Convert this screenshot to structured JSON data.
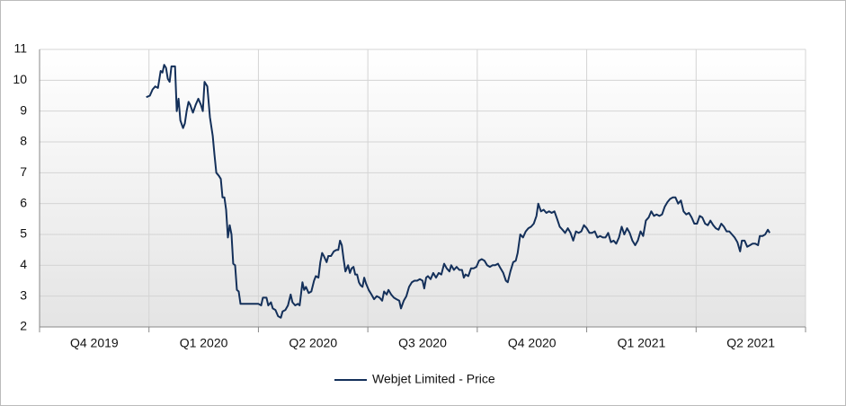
{
  "chart_data": {
    "type": "line",
    "xlim": [
      0,
      7
    ],
    "xticks": [
      {
        "value": 0.5,
        "label": "Q4 2019"
      },
      {
        "value": 1.5,
        "label": "Q1 2020"
      },
      {
        "value": 2.5,
        "label": "Q2 2020"
      },
      {
        "value": 3.5,
        "label": "Q3 2020"
      },
      {
        "value": 4.5,
        "label": "Q4 2020"
      },
      {
        "value": 5.5,
        "label": "Q1 2021"
      },
      {
        "value": 6.5,
        "label": "Q2 2021"
      }
    ],
    "ylim": [
      2,
      11
    ],
    "yticks": [
      2,
      3,
      4,
      5,
      6,
      7,
      8,
      9,
      10,
      11
    ],
    "grid": true,
    "legend": "bottom",
    "x": [
      0.975,
      1.008,
      1.033,
      1.057,
      1.082,
      1.107,
      1.123,
      1.139,
      1.156,
      1.172,
      1.189,
      1.205,
      1.238,
      1.254,
      1.27,
      1.287,
      1.311,
      1.328,
      1.344,
      1.361,
      1.377,
      1.402,
      1.426,
      1.451,
      1.475,
      1.492,
      1.508,
      1.533,
      1.557,
      1.582,
      1.598,
      1.615,
      1.639,
      1.656,
      1.672,
      1.689,
      1.705,
      1.721,
      1.738,
      1.754,
      1.77,
      1.787,
      1.803,
      1.82,
      1.836,
      1.869,
      1.934,
      2.0,
      2.025,
      2.041,
      2.074,
      2.09,
      2.115,
      2.131,
      2.156,
      2.18,
      2.205,
      2.221,
      2.246,
      2.27,
      2.295,
      2.311,
      2.336,
      2.361,
      2.377,
      2.402,
      2.418,
      2.434,
      2.459,
      2.484,
      2.508,
      2.525,
      2.549,
      2.566,
      2.582,
      2.598,
      2.623,
      2.639,
      2.664,
      2.689,
      2.713,
      2.73,
      2.746,
      2.762,
      2.779,
      2.795,
      2.82,
      2.836,
      2.852,
      2.869,
      2.885,
      2.902,
      2.918,
      2.934,
      2.951,
      2.967,
      2.984,
      3.008,
      3.033,
      3.057,
      3.082,
      3.107,
      3.131,
      3.148,
      3.172,
      3.189,
      3.213,
      3.238,
      3.262,
      3.287,
      3.303,
      3.328,
      3.352,
      3.377,
      3.402,
      3.426,
      3.451,
      3.475,
      3.5,
      3.516,
      3.533,
      3.549,
      3.574,
      3.598,
      3.623,
      3.648,
      3.672,
      3.697,
      3.721,
      3.746,
      3.762,
      3.787,
      3.811,
      3.836,
      3.861,
      3.877,
      3.893,
      3.918,
      3.943,
      3.967,
      3.992,
      4.016,
      4.041,
      4.066,
      4.09,
      4.115,
      4.139,
      4.164,
      4.189,
      4.213,
      4.238,
      4.262,
      4.279,
      4.303,
      4.328,
      4.352,
      4.369,
      4.393,
      4.418,
      4.443,
      4.467,
      4.492,
      4.516,
      4.541,
      4.557,
      4.582,
      4.607,
      4.631,
      4.656,
      4.68,
      4.705,
      4.73,
      4.754,
      4.779,
      4.803,
      4.828,
      4.852,
      4.877,
      4.902,
      4.926,
      4.951,
      4.975,
      5.0,
      5.025,
      5.049,
      5.074,
      5.098,
      5.123,
      5.148,
      5.172,
      5.197,
      5.221,
      5.246,
      5.27,
      5.295,
      5.32,
      5.344,
      5.369,
      5.393,
      5.418,
      5.443,
      5.467,
      5.492,
      5.516,
      5.541,
      5.566,
      5.59,
      5.615,
      5.639,
      5.664,
      5.689,
      5.713,
      5.738,
      5.762,
      5.787,
      5.811,
      5.836,
      5.861,
      5.885,
      5.91,
      5.934,
      5.959,
      5.984,
      6.008,
      6.033,
      6.057,
      6.082,
      6.107,
      6.131,
      6.156,
      6.18,
      6.205,
      6.23,
      6.254,
      6.279,
      6.303,
      6.328,
      6.352,
      6.377,
      6.402,
      6.418,
      6.443,
      6.467,
      6.492,
      6.516,
      6.541,
      6.566,
      6.582,
      6.607,
      6.631,
      6.656,
      6.672
    ],
    "series": [
      {
        "name": "Webjet Limited - Price",
        "color": "#14305a",
        "values": [
          9.45,
          9.5,
          9.7,
          9.8,
          9.75,
          10.3,
          10.25,
          10.5,
          10.4,
          10.05,
          9.95,
          10.45,
          10.45,
          9.0,
          9.4,
          8.7,
          8.45,
          8.6,
          9.0,
          9.3,
          9.2,
          8.95,
          9.2,
          9.4,
          9.2,
          9.0,
          9.95,
          9.8,
          8.8,
          8.2,
          7.6,
          7.0,
          6.9,
          6.8,
          6.2,
          6.2,
          5.8,
          4.9,
          5.3,
          5.0,
          4.05,
          4.0,
          3.2,
          3.15,
          2.75,
          2.75,
          2.75,
          2.75,
          2.7,
          2.95,
          2.95,
          2.7,
          2.8,
          2.6,
          2.55,
          2.35,
          2.3,
          2.5,
          2.55,
          2.7,
          3.05,
          2.8,
          2.7,
          2.75,
          2.7,
          3.45,
          3.2,
          3.3,
          3.1,
          3.15,
          3.5,
          3.65,
          3.6,
          4.1,
          4.4,
          4.3,
          4.1,
          4.3,
          4.3,
          4.45,
          4.5,
          4.5,
          4.8,
          4.65,
          4.2,
          3.8,
          4.0,
          3.75,
          3.9,
          3.95,
          3.7,
          3.7,
          3.45,
          3.35,
          3.3,
          3.6,
          3.4,
          3.2,
          3.05,
          2.9,
          3.0,
          2.95,
          2.85,
          3.15,
          3.05,
          3.2,
          3.05,
          2.95,
          2.9,
          2.85,
          2.6,
          2.85,
          3.0,
          3.3,
          3.45,
          3.5,
          3.5,
          3.55,
          3.5,
          3.25,
          3.6,
          3.65,
          3.55,
          3.75,
          3.6,
          3.75,
          3.7,
          4.05,
          3.9,
          3.8,
          4.0,
          3.85,
          3.95,
          3.85,
          3.85,
          3.6,
          3.7,
          3.65,
          3.9,
          3.9,
          3.95,
          4.15,
          4.2,
          4.15,
          4.0,
          3.95,
          4.0,
          4.0,
          4.05,
          3.9,
          3.75,
          3.5,
          3.45,
          3.8,
          4.1,
          4.15,
          4.4,
          5.0,
          4.9,
          5.1,
          5.2,
          5.25,
          5.35,
          5.6,
          6.0,
          5.75,
          5.8,
          5.7,
          5.75,
          5.7,
          5.75,
          5.5,
          5.25,
          5.15,
          5.05,
          5.2,
          5.05,
          4.8,
          5.1,
          5.05,
          5.1,
          5.3,
          5.2,
          5.05,
          5.05,
          5.1,
          4.9,
          4.95,
          4.9,
          4.9,
          5.05,
          4.75,
          4.8,
          4.7,
          4.9,
          5.25,
          5.0,
          5.2,
          5.05,
          4.8,
          4.65,
          4.8,
          5.1,
          4.95,
          5.45,
          5.55,
          5.75,
          5.6,
          5.65,
          5.6,
          5.65,
          5.9,
          6.05,
          6.15,
          6.2,
          6.2,
          6.0,
          6.1,
          5.75,
          5.65,
          5.7,
          5.55,
          5.35,
          5.35,
          5.6,
          5.55,
          5.35,
          5.3,
          5.45,
          5.3,
          5.2,
          5.15,
          5.35,
          5.25,
          5.1,
          5.1,
          5.0,
          4.9,
          4.75,
          4.45,
          4.8,
          4.8,
          4.6,
          4.65,
          4.7,
          4.7,
          4.65,
          4.95,
          4.95,
          5.0,
          5.15,
          5.05
        ]
      }
    ]
  }
}
